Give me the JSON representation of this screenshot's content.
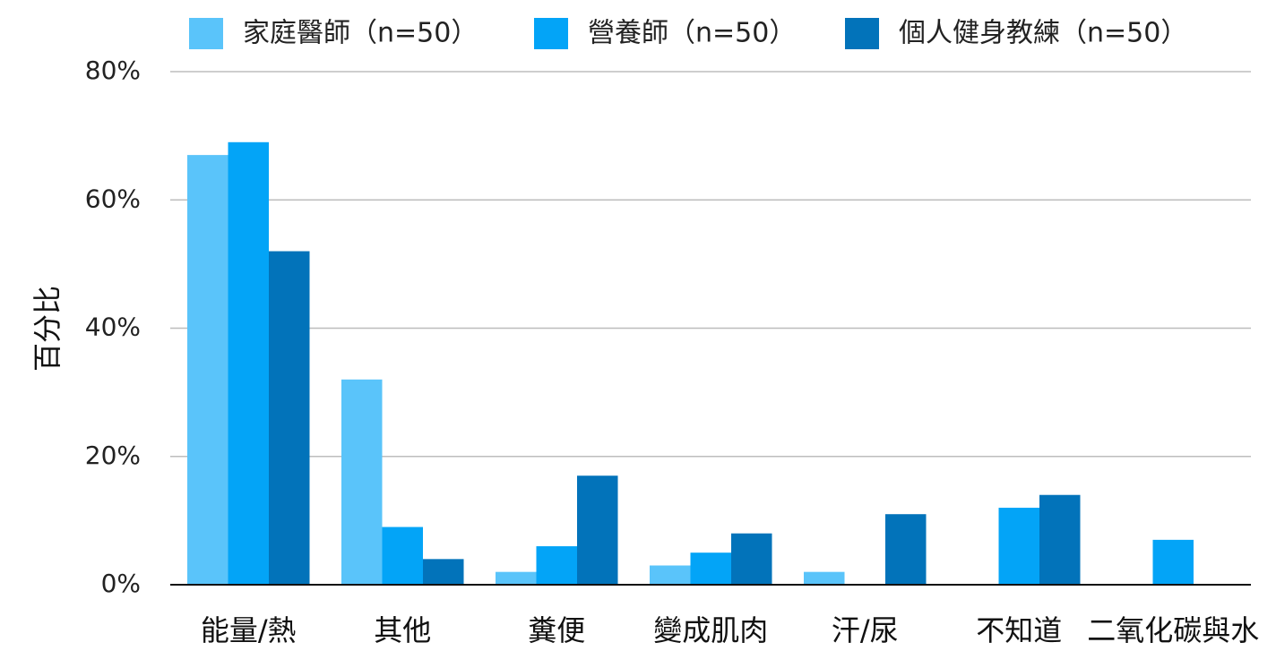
{
  "chart_data": {
    "type": "bar",
    "title": "",
    "xlabel": "",
    "ylabel": "百分比",
    "ylim": [
      0,
      80
    ],
    "y_ticks": [
      {
        "value": 0,
        "label": "0%"
      },
      {
        "value": 20,
        "label": "20%"
      },
      {
        "value": 40,
        "label": "40%"
      },
      {
        "value": 60,
        "label": "60%"
      },
      {
        "value": 80,
        "label": "80%"
      }
    ],
    "grid": true,
    "legend_position": "top",
    "categories": [
      "能量/熱",
      "其他",
      "糞便",
      "變成肌肉",
      "汗/尿",
      "不知道",
      "二氧化碳與水"
    ],
    "series": [
      {
        "name": "家庭醫師（n=50）",
        "color": "#5AC4FA",
        "values": [
          67,
          32,
          2,
          3,
          2,
          0,
          0
        ]
      },
      {
        "name": "營養師（n=50）",
        "color": "#03A4F7",
        "values": [
          69,
          9,
          6,
          5,
          0,
          12,
          7
        ]
      },
      {
        "name": "個人健身教練（n=50）",
        "color": "#0273BA",
        "values": [
          52,
          4,
          17,
          8,
          11,
          14,
          0
        ]
      }
    ]
  }
}
